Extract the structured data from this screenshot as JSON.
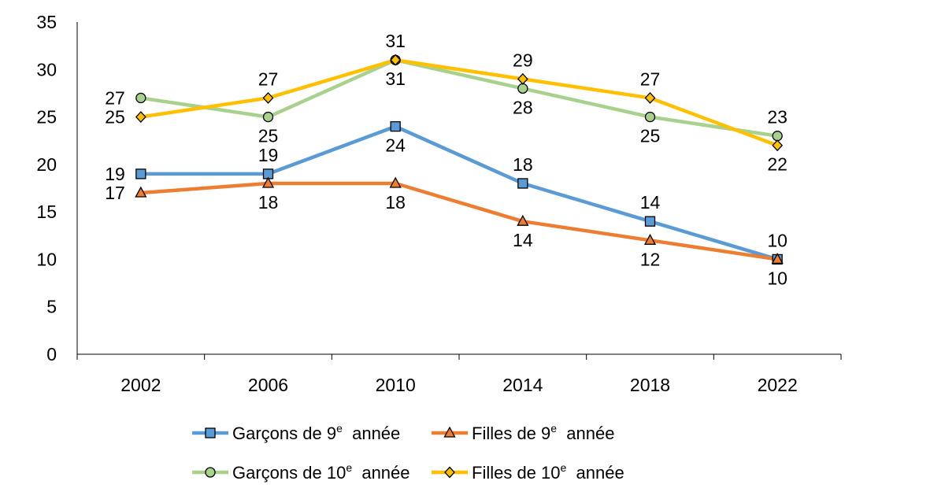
{
  "chart_data": {
    "type": "line",
    "categories": [
      "2002",
      "2006",
      "2010",
      "2014",
      "2018",
      "2022"
    ],
    "ylim": [
      0,
      35
    ],
    "yticks": [
      "0",
      "5",
      "10",
      "15",
      "20",
      "25",
      "30",
      "35"
    ],
    "grid": false,
    "legend_position": "bottom",
    "series": [
      {
        "name": "Garçons de 9e année",
        "legend_base": "Garçons de 9",
        "legend_sup": "e",
        "legend_tail": "année",
        "values": [
          19,
          19,
          24,
          18,
          14,
          10
        ],
        "color": "#5B9BD5",
        "marker": "square",
        "label_pos": [
          "left",
          "above",
          "below",
          "above",
          "above",
          "above"
        ]
      },
      {
        "name": "Filles de 9e année",
        "legend_base": "Filles de 9",
        "legend_sup": "e",
        "legend_tail": "année",
        "values": [
          17,
          18,
          18,
          14,
          12,
          10
        ],
        "color": "#ED7D31",
        "marker": "triangle",
        "label_pos": [
          "left",
          "below",
          "below",
          "below",
          "below",
          "below"
        ]
      },
      {
        "name": "Garçons de 10e année",
        "legend_base": "Garçons de 10",
        "legend_sup": "e",
        "legend_tail": "année",
        "values": [
          27,
          25,
          31,
          28,
          25,
          23
        ],
        "color": "#A9D18E",
        "marker": "circle",
        "label_pos": [
          "left",
          "below",
          "below",
          "below",
          "below",
          "above"
        ]
      },
      {
        "name": "Filles de 10e année",
        "legend_base": "Filles de 10",
        "legend_sup": "e",
        "legend_tail": "année",
        "values": [
          25,
          27,
          31,
          29,
          27,
          22
        ],
        "color": "#FFC000",
        "marker": "diamond",
        "label_pos": [
          "left",
          "above",
          "above",
          "above",
          "above",
          "below"
        ]
      }
    ]
  }
}
